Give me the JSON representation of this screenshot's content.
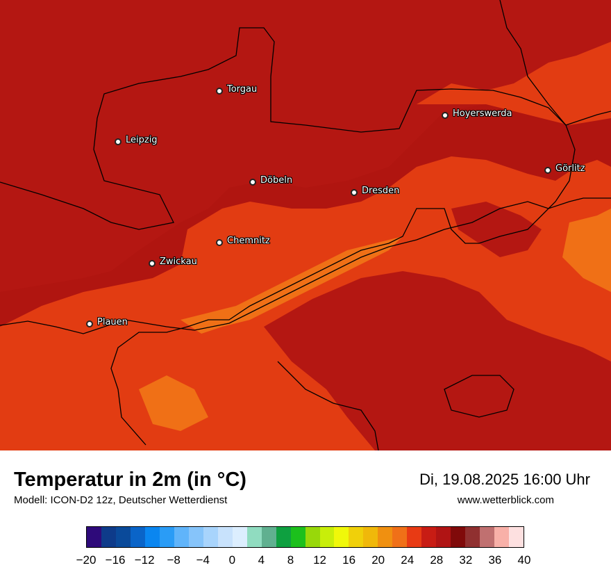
{
  "map": {
    "cities": [
      {
        "name": "Torgau"
      },
      {
        "name": "Hoyerswerda"
      },
      {
        "name": "Leipzig"
      },
      {
        "name": "Görlitz"
      },
      {
        "name": "Döbeln"
      },
      {
        "name": "Dresden"
      },
      {
        "name": "Chemnitz"
      },
      {
        "name": "Zwickau"
      },
      {
        "name": "Plauen"
      }
    ]
  },
  "footer": {
    "title": "Temperatur in 2m (in °C)",
    "model": "Modell: ICON-D2 12z, Deutscher Wetterdienst",
    "datetime": "Di, 19.08.2025 16:00 Uhr",
    "website": "www.wetterblick.com"
  },
  "legend": {
    "colors": [
      "#2e0a7a",
      "#0e3b8a",
      "#0a4a9a",
      "#0a64c8",
      "#0a86f0",
      "#2a9cf6",
      "#60b4fa",
      "#86c4fa",
      "#a8d4fc",
      "#c8e2fc",
      "#dceefe",
      "#90dcc0",
      "#60b090",
      "#0ea040",
      "#1cc01c",
      "#98d80a",
      "#c8ee0a",
      "#f0f80a",
      "#f0d00a",
      "#f0b80a",
      "#f09010",
      "#f07018",
      "#e83a14",
      "#c81c14",
      "#b01414",
      "#800a0a",
      "#903030",
      "#c07070",
      "#f8b0a8",
      "#fde0e0"
    ],
    "tick_labels": [
      "−20",
      "−16",
      "−12",
      "−8",
      "−4",
      "0",
      "4",
      "8",
      "12",
      "16",
      "20",
      "24",
      "28",
      "32",
      "36",
      "40"
    ],
    "min": -20,
    "max": 40
  }
}
